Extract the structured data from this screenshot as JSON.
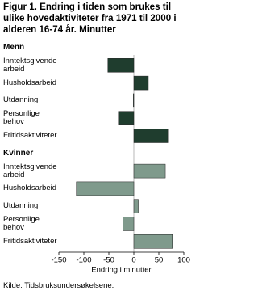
{
  "chart_data": {
    "type": "bar",
    "orientation": "horizontal",
    "title": "Figur 1. Endring i tiden som brukes til ulike hovedaktiviteter fra 1971 til 2000 i alderen 16-74 år. Minutter",
    "x_label": "Endring i minutter",
    "source": "Kilde: Tidsbruksundersøkelsene.",
    "groups": [
      {
        "name": "Menn",
        "color": "#1f3d2e",
        "categories": [
          "Inntektsgivende arbeid",
          "Husholdsarbeid",
          "Utdanning",
          "Personlige behov",
          "Fritidsaktiviteter"
        ],
        "values": [
          -52,
          29,
          -1,
          -31,
          68
        ]
      },
      {
        "name": "Kvinner",
        "color": "#7f9a8c",
        "categories": [
          "Inntektsgivende arbeid",
          "Husholdsarbeid",
          "Utdanning",
          "Personlige behov",
          "Fritidsaktiviteter"
        ],
        "values": [
          63,
          -115,
          9,
          -22,
          77
        ]
      }
    ],
    "xlim": [
      -150,
      100
    ],
    "xticks": [
      -150,
      -100,
      -50,
      0,
      50,
      100
    ]
  }
}
